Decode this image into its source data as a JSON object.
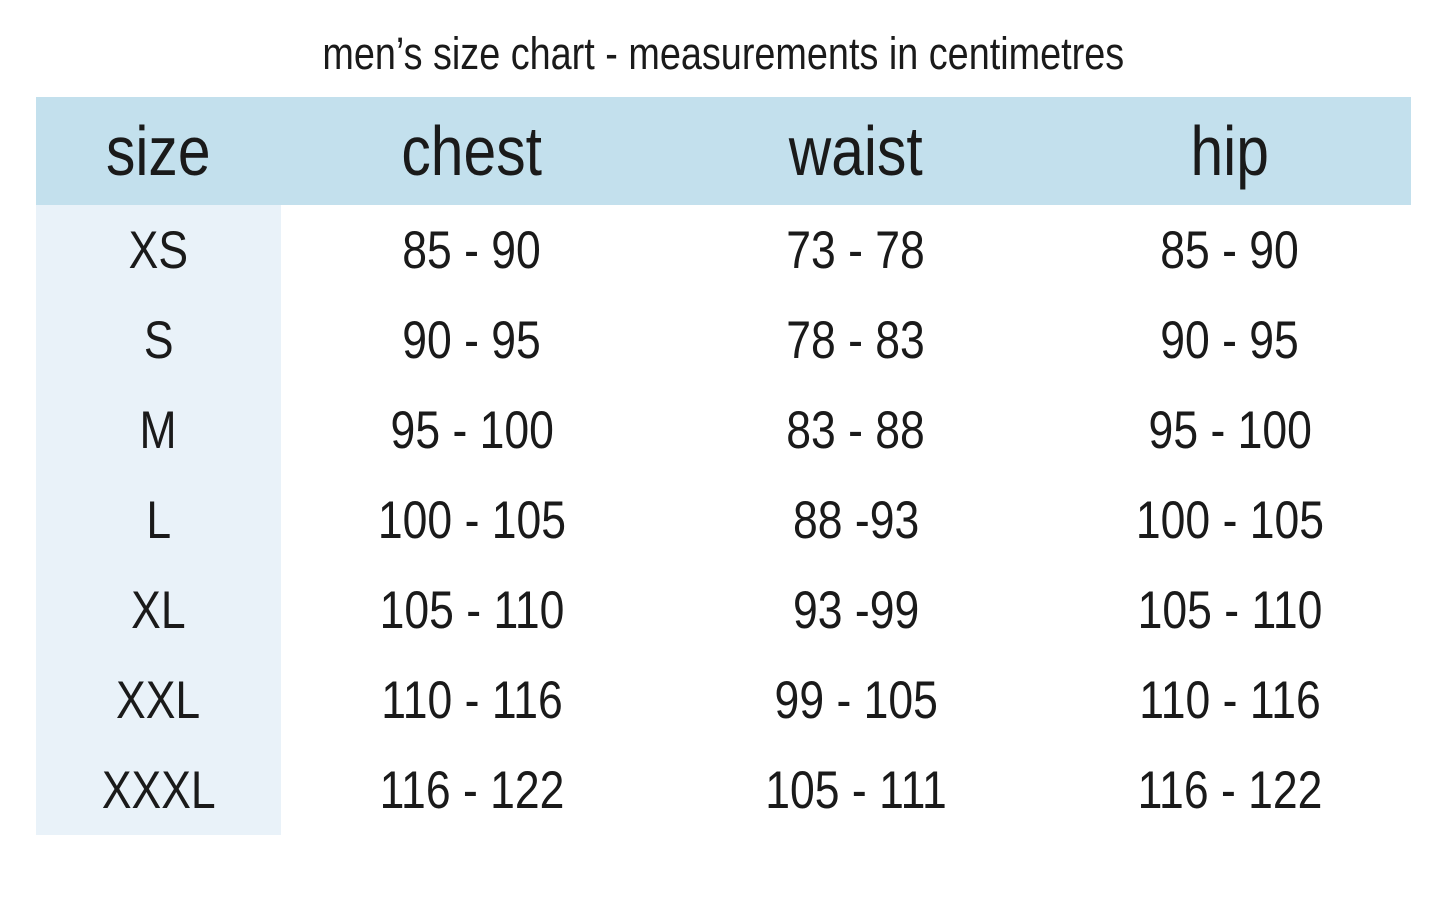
{
  "chart_data": {
    "type": "table",
    "title": "men’s size chart - measurements in centimetres",
    "columns": [
      "size",
      "chest",
      "waist",
      "hip"
    ],
    "rows": [
      [
        "XS",
        "85 - 90",
        "73 - 78",
        "85 - 90"
      ],
      [
        "S",
        "90 - 95",
        "78 - 83",
        "90 - 95"
      ],
      [
        "M",
        "95 - 100",
        "83 - 88",
        "95 - 100"
      ],
      [
        "L",
        "100 - 105",
        "88 -93",
        "100 - 105"
      ],
      [
        "XL",
        "105 - 110",
        "93 -99",
        "105 - 110"
      ],
      [
        "XXL",
        "110 - 116",
        "99 - 105",
        "110 - 116"
      ],
      [
        "XXXL",
        "116 - 122",
        "105 - 111",
        "116 - 122"
      ]
    ]
  },
  "colors": {
    "page_bg": "#ffffff",
    "header_bg": "#c3e0ed",
    "size_column_bg": "#e9f2f9",
    "text": "#1a1a1a"
  }
}
